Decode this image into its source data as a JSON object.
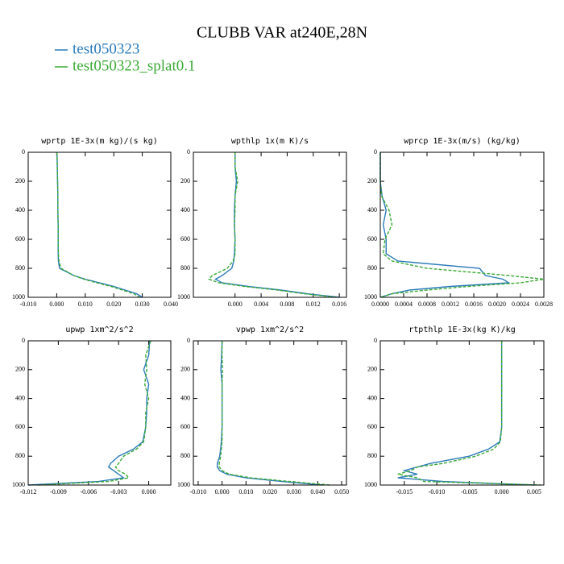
{
  "title": "CLUBB VAR at240E,28N",
  "chart_data": [
    {
      "type": "line",
      "title": "wprtp  1E-3x(m kg)/(s kg)",
      "y": [
        0,
        100,
        200,
        300,
        400,
        500,
        600,
        700,
        750,
        800,
        850,
        875,
        900,
        925,
        950,
        975,
        1000
      ],
      "ylim": [
        1000,
        0
      ],
      "yticks": [
        0,
        200,
        400,
        600,
        800,
        1000
      ],
      "xlim": [
        -0.01,
        0.04
      ],
      "xticks": [
        {
          "value": -0.01,
          "label": "-0.010"
        },
        {
          "value": 0,
          "label": "0.000"
        },
        {
          "value": 0.01,
          "label": "0.010"
        },
        {
          "value": 0.02,
          "label": "0.020"
        },
        {
          "value": 0.03,
          "label": "0.030"
        },
        {
          "value": 0.04,
          "label": "0.040"
        }
      ],
      "series": [
        {
          "name": "test050323",
          "color": "#2b7bba",
          "linestyle": "solid",
          "values": [
            0.0001,
            0.0002,
            0.0003,
            0.0004,
            0.0004,
            0.0005,
            0.0005,
            0.0005,
            0.0006,
            0.001,
            0.006,
            0.01,
            0.015,
            0.02,
            0.024,
            0.028,
            0.03
          ]
        },
        {
          "name": "test050323_splat0.1",
          "color": "#3aaa35",
          "linestyle": "dashed",
          "values": [
            0.0001,
            0.0002,
            0.0003,
            0.0004,
            0.0004,
            0.0005,
            0.0005,
            0.0006,
            0.0008,
            0.0015,
            0.006,
            0.0095,
            0.014,
            0.019,
            0.023,
            0.027,
            0.029
          ]
        }
      ]
    },
    {
      "type": "line",
      "title": "wpthlp  1x(m K)/s",
      "y": [
        0,
        100,
        200,
        300,
        400,
        500,
        600,
        700,
        750,
        800,
        850,
        875,
        900,
        925,
        950,
        975,
        1000
      ],
      "ylim": [
        1000,
        0
      ],
      "yticks": [
        0,
        200,
        400,
        600,
        800,
        1000
      ],
      "xlim": [
        -0.0064,
        0.0171
      ],
      "xticks": [
        {
          "value": 0,
          "label": "0.000"
        },
        {
          "value": 0.004,
          "label": "0.004"
        },
        {
          "value": 0.008,
          "label": "0.008"
        },
        {
          "value": 0.012,
          "label": "0.012"
        },
        {
          "value": 0.016,
          "label": "0.016"
        }
      ],
      "series": [
        {
          "name": "test050323",
          "color": "#2b7bba",
          "linestyle": "solid",
          "values": [
            0,
            0,
            0.0002,
            0,
            -0.0001,
            -0.0001,
            0,
            -0.0001,
            -0.0002,
            -0.0005,
            -0.002,
            -0.003,
            -0.002,
            0.002,
            0.007,
            0.011,
            0.016
          ]
        },
        {
          "name": "test050323_splat0.1",
          "color": "#3aaa35",
          "linestyle": "dashed",
          "values": [
            0,
            0,
            0.0004,
            0,
            0,
            -0.0001,
            0,
            0,
            -0.0003,
            -0.0012,
            -0.0035,
            -0.004,
            -0.0025,
            0.0015,
            0.0065,
            0.0105,
            0.0155
          ]
        }
      ]
    },
    {
      "type": "line",
      "title": "wprcp  1E-3x(m/s) (kg/kg)",
      "y": [
        0,
        100,
        200,
        300,
        400,
        500,
        600,
        700,
        750,
        800,
        850,
        875,
        900,
        925,
        950,
        975,
        1000
      ],
      "ylim": [
        1000,
        0
      ],
      "yticks": [
        0,
        200,
        400,
        600,
        800,
        1000
      ],
      "xlim": [
        0,
        0.0028
      ],
      "xticks": [
        {
          "value": 0,
          "label": "0.0000"
        },
        {
          "value": 0.0004,
          "label": "0.0004"
        },
        {
          "value": 0.0008,
          "label": "0.0008"
        },
        {
          "value": 0.0012,
          "label": "0.0012"
        },
        {
          "value": 0.0016,
          "label": "0.0016"
        },
        {
          "value": 0.002,
          "label": "0.0020"
        },
        {
          "value": 0.0024,
          "label": "0.0024"
        },
        {
          "value": 0.0028,
          "label": "0.0028"
        }
      ],
      "series": [
        {
          "name": "test050323",
          "color": "#2b7bba",
          "linestyle": "solid",
          "values": [
            0,
            0,
            0,
            3e-05,
            0.0001,
            5e-05,
            0.0001,
            0.0001,
            0.0003,
            0.0017,
            0.0018,
            0.0021,
            0.0022,
            0.0012,
            0.0005,
            0.0002,
            0
          ]
        },
        {
          "name": "test050323_splat0.1",
          "color": "#3aaa35",
          "linestyle": "dashed",
          "values": [
            0,
            0,
            0,
            2e-05,
            0.00015,
            0.0002,
            8e-05,
            5e-05,
            0.0002,
            0.0008,
            0.0022,
            0.0028,
            0.0024,
            0.0015,
            0.0008,
            0.0002,
            0
          ]
        }
      ]
    },
    {
      "type": "line",
      "title": "upwp  1xm^2/s^2",
      "y": [
        0,
        100,
        200,
        300,
        400,
        500,
        600,
        700,
        750,
        800,
        850,
        875,
        900,
        925,
        950,
        975,
        1000
      ],
      "ylim": [
        1000,
        0
      ],
      "yticks": [
        0,
        200,
        400,
        600,
        800,
        1000
      ],
      "xlim": [
        -0.012,
        0.0022
      ],
      "xticks": [
        {
          "value": -0.012,
          "label": "-0.012"
        },
        {
          "value": -0.009,
          "label": "-0.009"
        },
        {
          "value": -0.006,
          "label": "-0.006"
        },
        {
          "value": -0.003,
          "label": "-0.003"
        },
        {
          "value": 0,
          "label": "0.000"
        }
      ],
      "series": [
        {
          "name": "test050323",
          "color": "#2b7bba",
          "linestyle": "solid",
          "values": [
            0.0001,
            0,
            -0.0005,
            0,
            -0.0002,
            -0.0002,
            -0.0003,
            -0.0006,
            -0.0015,
            -0.003,
            -0.0038,
            -0.004,
            -0.0035,
            -0.003,
            -0.0025,
            -0.005,
            -0.012
          ]
        },
        {
          "name": "test050323_splat0.1",
          "color": "#3aaa35",
          "linestyle": "dashed",
          "values": [
            0.0002,
            -0.0003,
            -0.0002,
            -0.0004,
            0,
            -0.0003,
            -0.0003,
            -0.0005,
            -0.0012,
            -0.0025,
            -0.003,
            -0.0033,
            -0.003,
            -0.0023,
            -0.002,
            -0.004,
            -0.011
          ]
        }
      ]
    },
    {
      "type": "line",
      "title": "vpwp  1xm^2/s^2",
      "y": [
        0,
        100,
        200,
        300,
        400,
        500,
        600,
        700,
        750,
        800,
        850,
        875,
        900,
        925,
        950,
        975,
        1000
      ],
      "ylim": [
        1000,
        0
      ],
      "yticks": [
        0,
        200,
        400,
        600,
        800,
        1000
      ],
      "xlim": [
        -0.012,
        0.052
      ],
      "xticks": [
        {
          "value": -0.01,
          "label": "-0.010"
        },
        {
          "value": 0,
          "label": "0.000"
        },
        {
          "value": 0.01,
          "label": "0.010"
        },
        {
          "value": 0.02,
          "label": "0.020"
        },
        {
          "value": 0.03,
          "label": "0.030"
        },
        {
          "value": 0.04,
          "label": "0.040"
        },
        {
          "value": 0.05,
          "label": "0.050"
        }
      ],
      "series": [
        {
          "name": "test050323",
          "color": "#2b7bba",
          "linestyle": "solid",
          "values": [
            0,
            -0.0002,
            -0.0005,
            0,
            0,
            0,
            0,
            -0.0003,
            -0.0006,
            -0.001,
            -0.002,
            -0.002,
            -0.001,
            0.002,
            0.01,
            0.025,
            0.042
          ]
        },
        {
          "name": "test050323_splat0.1",
          "color": "#3aaa35",
          "linestyle": "dashed",
          "values": [
            0,
            0,
            0.0002,
            0,
            0,
            0,
            0,
            0,
            -0.0003,
            -0.0006,
            -0.0012,
            -0.0012,
            0,
            0.003,
            0.012,
            0.028,
            0.045
          ]
        }
      ]
    },
    {
      "type": "line",
      "title": "rtpthlp  1E-3x(kg K)/kg",
      "y": [
        0,
        100,
        200,
        300,
        400,
        500,
        600,
        700,
        750,
        800,
        850,
        875,
        900,
        925,
        950,
        975,
        1000
      ],
      "ylim": [
        1000,
        0
      ],
      "yticks": [
        0,
        200,
        400,
        600,
        800,
        1000
      ],
      "xlim": [
        -0.0187,
        0.0065
      ],
      "xticks": [
        {
          "value": -0.015,
          "label": "-0.015"
        },
        {
          "value": -0.01,
          "label": "-0.010"
        },
        {
          "value": -0.005,
          "label": "-0.005"
        },
        {
          "value": 0,
          "label": "0.000"
        },
        {
          "value": 0.005,
          "label": "0.005"
        }
      ],
      "series": [
        {
          "name": "test050323",
          "color": "#2b7bba",
          "linestyle": "solid",
          "values": [
            0,
            0,
            0,
            0,
            0,
            0,
            0,
            -0.0003,
            -0.002,
            -0.005,
            -0.011,
            -0.013,
            -0.015,
            -0.013,
            -0.016,
            -0.009,
            0.005
          ]
        },
        {
          "name": "test050323_splat0.1",
          "color": "#3aaa35",
          "linestyle": "dashed",
          "values": [
            0,
            0,
            0,
            0,
            0,
            0,
            0,
            -0.0002,
            -0.0012,
            -0.004,
            -0.009,
            -0.013,
            -0.014,
            -0.016,
            -0.013,
            -0.012,
            0.006
          ]
        }
      ]
    }
  ]
}
